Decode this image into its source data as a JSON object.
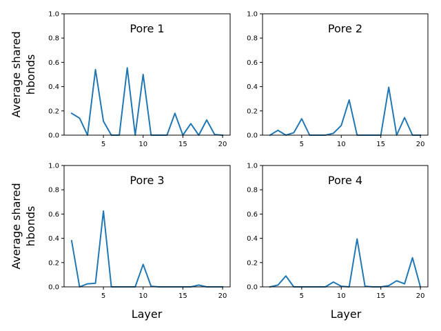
{
  "figure": {
    "ylabel_lines": [
      "Average shared",
      "hbonds"
    ],
    "xlabel": "Layer",
    "line_color": "#1f77b4"
  },
  "chart_data": [
    {
      "type": "line",
      "title": "Pore 1",
      "xlim": [
        0.05,
        20.95
      ],
      "ylim": [
        0,
        1.0
      ],
      "xticks": [
        5,
        10,
        15,
        20
      ],
      "yticks": [
        0.0,
        0.2,
        0.4,
        0.6,
        0.8,
        1.0
      ],
      "x": [
        1,
        2,
        3,
        4,
        5,
        6,
        7,
        8,
        9,
        10,
        11,
        12,
        13,
        14,
        15,
        16,
        17,
        18,
        19,
        20
      ],
      "values": [
        0.18,
        0.14,
        0.0,
        0.54,
        0.115,
        0.0,
        0.0,
        0.555,
        0.0,
        0.5,
        0.0,
        0.0,
        0.0,
        0.18,
        0.0,
        0.095,
        0.0,
        0.125,
        0.005,
        0.0
      ]
    },
    {
      "type": "line",
      "title": "Pore 2",
      "xlim": [
        0.05,
        20.95
      ],
      "ylim": [
        0,
        1.0
      ],
      "xticks": [
        5,
        10,
        15,
        20
      ],
      "yticks": [
        0.0,
        0.2,
        0.4,
        0.6,
        0.8,
        1.0
      ],
      "x": [
        1,
        2,
        3,
        4,
        5,
        6,
        7,
        8,
        9,
        10,
        11,
        12,
        13,
        14,
        15,
        16,
        17,
        18,
        19,
        20
      ],
      "values": [
        0.0,
        0.04,
        0.0,
        0.02,
        0.135,
        0.0,
        0.0,
        0.0,
        0.015,
        0.08,
        0.29,
        0.0,
        0.0,
        0.0,
        0.0,
        0.395,
        0.0,
        0.145,
        0.0,
        0.0
      ]
    },
    {
      "type": "line",
      "title": "Pore 3",
      "xlim": [
        0.05,
        20.95
      ],
      "ylim": [
        0,
        1.0
      ],
      "xticks": [
        5,
        10,
        15,
        20
      ],
      "yticks": [
        0.0,
        0.2,
        0.4,
        0.6,
        0.8,
        1.0
      ],
      "x": [
        1,
        2,
        3,
        4,
        5,
        6,
        7,
        8,
        9,
        10,
        11,
        12,
        13,
        14,
        15,
        16,
        17,
        18,
        19,
        20
      ],
      "values": [
        0.38,
        0.0,
        0.025,
        0.03,
        0.625,
        0.0,
        0.0,
        0.0,
        0.0,
        0.185,
        0.005,
        0.0,
        0.0,
        0.0,
        0.0,
        0.0,
        0.015,
        0.0,
        0.0,
        0.0
      ]
    },
    {
      "type": "line",
      "title": "Pore 4",
      "xlim": [
        0.05,
        20.95
      ],
      "ylim": [
        0,
        1.0
      ],
      "xticks": [
        5,
        10,
        15,
        20
      ],
      "yticks": [
        0.0,
        0.2,
        0.4,
        0.6,
        0.8,
        1.0
      ],
      "x": [
        1,
        2,
        3,
        4,
        5,
        6,
        7,
        8,
        9,
        10,
        11,
        12,
        13,
        14,
        15,
        16,
        17,
        18,
        19,
        20
      ],
      "values": [
        0.0,
        0.015,
        0.09,
        0.0,
        0.0,
        0.0,
        0.0,
        0.0,
        0.04,
        0.005,
        0.0,
        0.395,
        0.005,
        0.0,
        0.0,
        0.01,
        0.05,
        0.025,
        0.24,
        0.0
      ]
    }
  ]
}
